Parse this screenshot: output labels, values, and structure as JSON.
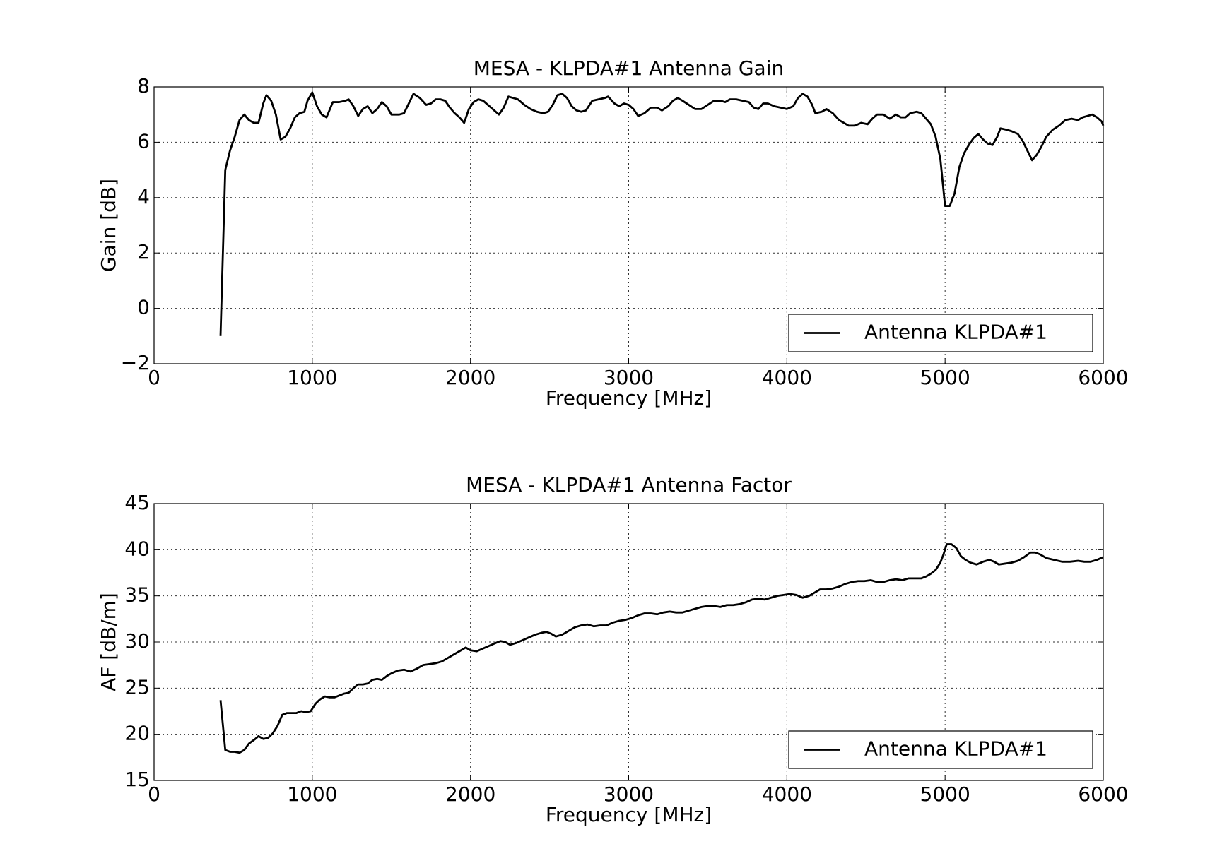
{
  "chart_data": [
    {
      "type": "line",
      "title": "MESA - KLPDA#1 Antenna Gain",
      "xlabel": "Frequency [MHz]",
      "ylabel": "Gain [dB]",
      "xlim": [
        0,
        6000
      ],
      "xticks": [
        0,
        1000,
        2000,
        3000,
        4000,
        5000,
        6000
      ],
      "ylim": [
        -2,
        8
      ],
      "yticks": [
        {
          "value": -2,
          "label": "−2"
        },
        0,
        2,
        4,
        6,
        8
      ],
      "grid": true,
      "legend": "lower right",
      "x": [
        420,
        450,
        480,
        510,
        540,
        570,
        600,
        630,
        660,
        690,
        710,
        740,
        770,
        800,
        830,
        860,
        890,
        920,
        950,
        970,
        1000,
        1030,
        1060,
        1090,
        1130,
        1170,
        1210,
        1230,
        1260,
        1290,
        1320,
        1350,
        1380,
        1410,
        1440,
        1470,
        1500,
        1550,
        1580,
        1610,
        1640,
        1680,
        1720,
        1750,
        1780,
        1810,
        1840,
        1870,
        1900,
        1930,
        1960,
        1990,
        2020,
        2050,
        2080,
        2110,
        2150,
        2180,
        2210,
        2240,
        2270,
        2300,
        2340,
        2380,
        2420,
        2460,
        2490,
        2520,
        2550,
        2580,
        2610,
        2640,
        2670,
        2700,
        2730,
        2770,
        2810,
        2850,
        2870,
        2910,
        2940,
        2970,
        3000,
        3030,
        3060,
        3100,
        3140,
        3180,
        3210,
        3250,
        3280,
        3310,
        3340,
        3380,
        3420,
        3460,
        3500,
        3540,
        3580,
        3610,
        3640,
        3680,
        3720,
        3760,
        3790,
        3820,
        3850,
        3880,
        3920,
        3960,
        4000,
        4040,
        4070,
        4100,
        4130,
        4160,
        4180,
        4220,
        4250,
        4290,
        4330,
        4360,
        4390,
        4430,
        4470,
        4510,
        4540,
        4570,
        4610,
        4650,
        4690,
        4720,
        4750,
        4780,
        4820,
        4850,
        4880,
        4910,
        4940,
        4970,
        5000,
        5030,
        5060,
        5090,
        5120,
        5150,
        5180,
        5210,
        5240,
        5270,
        5300,
        5330,
        5350,
        5390,
        5420,
        5460,
        5490,
        5520,
        5550,
        5580,
        5610,
        5640,
        5680,
        5720,
        5760,
        5800,
        5840,
        5870,
        5900,
        5930,
        5960,
        5990,
        6000
      ],
      "series": [
        {
          "name": "Antenna KLPDA#1",
          "color": "#000000",
          "values": [
            -1,
            5,
            5.7,
            6.2,
            6.8,
            7.0,
            6.8,
            6.7,
            6.7,
            7.4,
            7.7,
            7.5,
            7.0,
            6.1,
            6.2,
            6.5,
            6.9,
            7.05,
            7.1,
            7.5,
            7.8,
            7.3,
            7.0,
            6.9,
            7.45,
            7.45,
            7.5,
            7.55,
            7.3,
            6.95,
            7.2,
            7.3,
            7.05,
            7.2,
            7.45,
            7.3,
            7.0,
            7.0,
            7.05,
            7.4,
            7.75,
            7.6,
            7.35,
            7.4,
            7.55,
            7.55,
            7.5,
            7.25,
            7.05,
            6.9,
            6.7,
            7.2,
            7.45,
            7.55,
            7.5,
            7.35,
            7.15,
            7.0,
            7.25,
            7.65,
            7.6,
            7.55,
            7.35,
            7.2,
            7.1,
            7.05,
            7.1,
            7.35,
            7.7,
            7.75,
            7.6,
            7.3,
            7.15,
            7.1,
            7.15,
            7.5,
            7.55,
            7.6,
            7.65,
            7.4,
            7.3,
            7.4,
            7.35,
            7.2,
            6.95,
            7.05,
            7.25,
            7.25,
            7.15,
            7.3,
            7.5,
            7.6,
            7.5,
            7.35,
            7.2,
            7.2,
            7.35,
            7.5,
            7.5,
            7.45,
            7.55,
            7.55,
            7.5,
            7.45,
            7.25,
            7.2,
            7.4,
            7.4,
            7.3,
            7.25,
            7.2,
            7.3,
            7.6,
            7.75,
            7.65,
            7.35,
            7.05,
            7.1,
            7.2,
            7.05,
            6.8,
            6.7,
            6.6,
            6.6,
            6.7,
            6.65,
            6.85,
            7.0,
            7.0,
            6.85,
            7.0,
            6.9,
            6.9,
            7.05,
            7.1,
            7.05,
            6.85,
            6.65,
            6.2,
            5.4,
            3.7,
            3.7,
            4.15,
            5.1,
            5.6,
            5.9,
            6.15,
            6.3,
            6.1,
            5.95,
            5.9,
            6.2,
            6.5,
            6.45,
            6.4,
            6.3,
            6.05,
            5.7,
            5.35,
            5.55,
            5.85,
            6.2,
            6.45,
            6.6,
            6.8,
            6.85,
            6.8,
            6.9,
            6.95,
            7.0,
            6.9,
            6.75,
            6.6
          ]
        }
      ]
    },
    {
      "type": "line",
      "title": "MESA - KLPDA#1 Antenna Factor",
      "xlabel": "Frequency [MHz]",
      "ylabel": "AF [dB/m]",
      "xlim": [
        0,
        6000
      ],
      "xticks": [
        0,
        1000,
        2000,
        3000,
        4000,
        5000,
        6000
      ],
      "ylim": [
        15,
        45
      ],
      "yticks": [
        15,
        20,
        25,
        30,
        35,
        40,
        45
      ],
      "grid": true,
      "legend": "lower right",
      "x": [
        420,
        450,
        480,
        510,
        540,
        570,
        600,
        640,
        660,
        690,
        720,
        750,
        780,
        810,
        840,
        870,
        900,
        930,
        960,
        990,
        1020,
        1050,
        1080,
        1110,
        1140,
        1170,
        1200,
        1230,
        1260,
        1290,
        1320,
        1350,
        1380,
        1410,
        1440,
        1470,
        1500,
        1540,
        1580,
        1620,
        1660,
        1700,
        1740,
        1780,
        1820,
        1860,
        1900,
        1940,
        1970,
        2000,
        2040,
        2080,
        2120,
        2160,
        2190,
        2220,
        2250,
        2290,
        2330,
        2370,
        2410,
        2450,
        2480,
        2510,
        2540,
        2580,
        2620,
        2660,
        2700,
        2740,
        2780,
        2820,
        2860,
        2900,
        2940,
        2980,
        3020,
        3060,
        3100,
        3140,
        3180,
        3220,
        3260,
        3300,
        3340,
        3380,
        3420,
        3460,
        3500,
        3540,
        3580,
        3620,
        3660,
        3700,
        3740,
        3780,
        3820,
        3860,
        3900,
        3940,
        3980,
        4020,
        4060,
        4100,
        4140,
        4180,
        4210,
        4250,
        4290,
        4330,
        4370,
        4410,
        4450,
        4490,
        4530,
        4570,
        4610,
        4650,
        4690,
        4730,
        4770,
        4810,
        4850,
        4880,
        4910,
        4940,
        4970,
        4990,
        5010,
        5040,
        5070,
        5100,
        5130,
        5160,
        5200,
        5240,
        5280,
        5310,
        5340,
        5380,
        5420,
        5460,
        5500,
        5540,
        5570,
        5600,
        5640,
        5690,
        5740,
        5790,
        5840,
        5880,
        5920,
        5960,
        6000
      ],
      "series": [
        {
          "name": "Antenna KLPDA#1",
          "color": "#000000",
          "values": [
            23.7,
            18.3,
            18.1,
            18.1,
            18.0,
            18.3,
            19.0,
            19.5,
            19.8,
            19.5,
            19.6,
            20.1,
            20.9,
            22.1,
            22.3,
            22.3,
            22.3,
            22.5,
            22.4,
            22.5,
            23.3,
            23.8,
            24.1,
            24.0,
            24.0,
            24.2,
            24.4,
            24.5,
            25.0,
            25.4,
            25.4,
            25.5,
            25.9,
            26.0,
            25.9,
            26.3,
            26.6,
            26.9,
            27.0,
            26.8,
            27.1,
            27.5,
            27.6,
            27.7,
            27.9,
            28.3,
            28.7,
            29.1,
            29.4,
            29.1,
            29.0,
            29.3,
            29.6,
            29.9,
            30.1,
            30.0,
            29.7,
            29.9,
            30.2,
            30.5,
            30.8,
            31.0,
            31.1,
            30.9,
            30.6,
            30.8,
            31.2,
            31.6,
            31.8,
            31.9,
            31.7,
            31.8,
            31.8,
            32.1,
            32.3,
            32.4,
            32.6,
            32.9,
            33.1,
            33.1,
            33.0,
            33.2,
            33.3,
            33.2,
            33.2,
            33.4,
            33.6,
            33.8,
            33.9,
            33.9,
            33.8,
            34.0,
            34.0,
            34.1,
            34.3,
            34.6,
            34.7,
            34.6,
            34.8,
            35.0,
            35.1,
            35.2,
            35.1,
            34.8,
            35.0,
            35.4,
            35.7,
            35.7,
            35.8,
            36.0,
            36.3,
            36.5,
            36.6,
            36.6,
            36.7,
            36.5,
            36.5,
            36.7,
            36.8,
            36.7,
            36.9,
            36.9,
            36.9,
            37.1,
            37.4,
            37.8,
            38.6,
            39.5,
            40.6,
            40.6,
            40.2,
            39.3,
            38.9,
            38.6,
            38.4,
            38.7,
            38.9,
            38.7,
            38.4,
            38.5,
            38.6,
            38.8,
            39.2,
            39.7,
            39.7,
            39.5,
            39.1,
            38.9,
            38.7,
            38.7,
            38.8,
            38.7,
            38.7,
            38.9,
            39.2
          ]
        }
      ]
    }
  ]
}
